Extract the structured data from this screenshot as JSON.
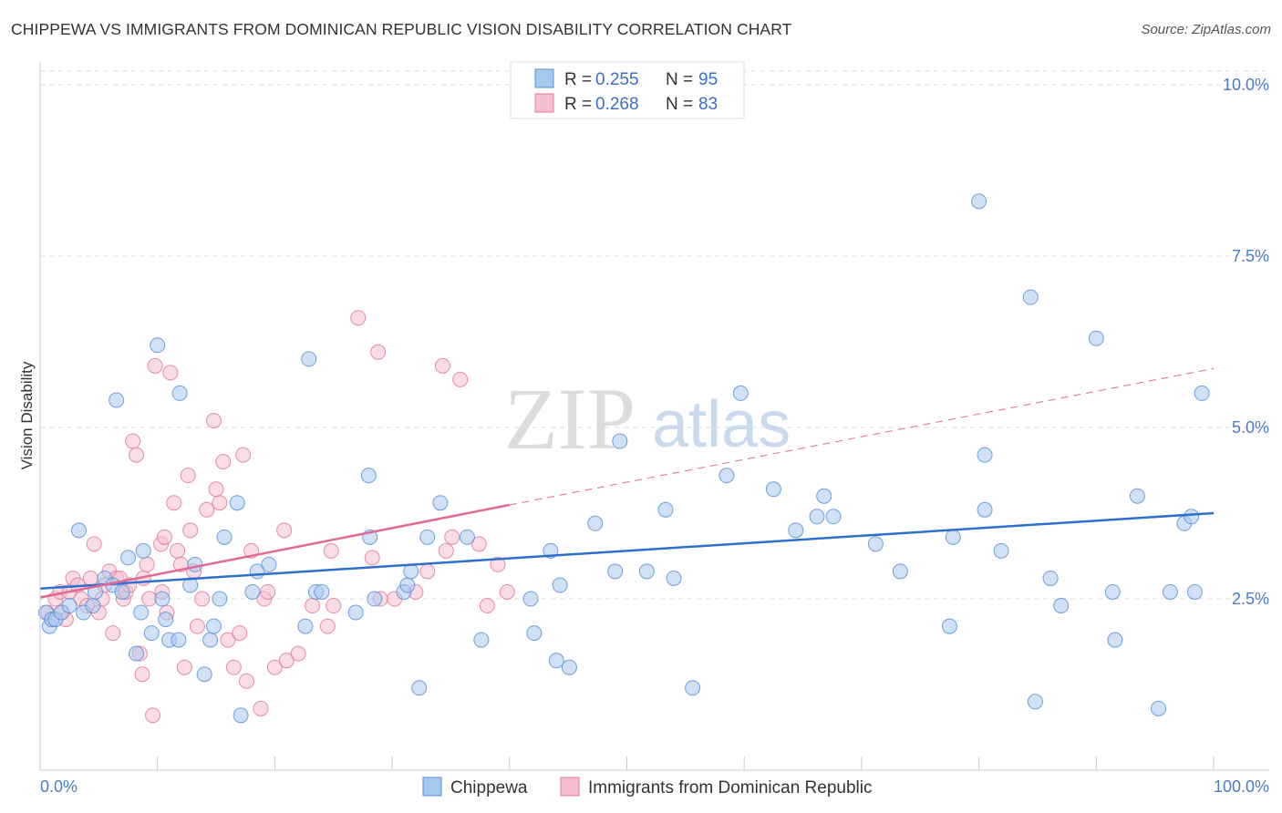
{
  "header": {
    "title": "CHIPPEWA VS IMMIGRANTS FROM DOMINICAN REPUBLIC VISION DISABILITY CORRELATION CHART",
    "source": "Source: ZipAtlas.com"
  },
  "watermark": {
    "zip": "ZIP",
    "atlas": "atlas"
  },
  "legend": {
    "items": [
      {
        "r_label": "R =",
        "r_value": "0.255",
        "n_label": "N =",
        "n_value": "95"
      },
      {
        "r_label": "R =",
        "r_value": "0.268",
        "n_label": "N =",
        "n_value": "83"
      }
    ]
  },
  "bottom_legend": [
    "Chippewa",
    "Immigrants from Dominican Republic"
  ],
  "colors": {
    "blue_fill": "#a9c8ef",
    "blue_stroke": "#5b8fd6",
    "blue_line": "#2e6fcb",
    "pink_fill": "#f6bfd0",
    "pink_stroke": "#e07a9b",
    "pink_line": "#e0699a",
    "tick_label": "#4a7cc7",
    "grid": "#dddddd"
  },
  "chart_data": {
    "type": "scatter",
    "title": "CHIPPEWA VS IMMIGRANTS FROM DOMINICAN REPUBLIC VISION DISABILITY CORRELATION CHART",
    "xlabel": "",
    "ylabel": "Vision Disability",
    "xlim": [
      0,
      100
    ],
    "ylim": [
      0,
      10.2
    ],
    "x_tick_labels": [
      "0.0%",
      "100.0%"
    ],
    "y_ticks": [
      2.5,
      5.0,
      7.5,
      10.0
    ],
    "y_tick_labels": [
      "2.5%",
      "5.0%",
      "7.5%",
      "10.0%"
    ],
    "grid": "horizontal dashed",
    "legend_position": "top-center",
    "series": [
      {
        "name": "Chippewa",
        "r": 0.255,
        "n": 95,
        "trend": {
          "x": [
            0,
            100
          ],
          "y": [
            2.65,
            3.75
          ],
          "style": "solid"
        },
        "points": [
          [
            0.5,
            2.3
          ],
          [
            0.8,
            2.1
          ],
          [
            1.0,
            2.2
          ],
          [
            1.3,
            2.2
          ],
          [
            1.8,
            2.3
          ],
          [
            2.5,
            2.4
          ],
          [
            3.3,
            3.5
          ],
          [
            3.7,
            2.3
          ],
          [
            4.5,
            2.4
          ],
          [
            4.7,
            2.6
          ],
          [
            5.5,
            2.8
          ],
          [
            6.2,
            2.7
          ],
          [
            6.5,
            5.4
          ],
          [
            7.0,
            2.6
          ],
          [
            7.5,
            3.1
          ],
          [
            8.2,
            1.7
          ],
          [
            8.6,
            2.3
          ],
          [
            8.8,
            3.2
          ],
          [
            9.5,
            2.0
          ],
          [
            10.0,
            6.2
          ],
          [
            10.4,
            2.5
          ],
          [
            10.7,
            2.2
          ],
          [
            11.0,
            1.9
          ],
          [
            11.8,
            1.9
          ],
          [
            11.9,
            5.5
          ],
          [
            12.8,
            2.7
          ],
          [
            13.2,
            3.0
          ],
          [
            14.0,
            1.4
          ],
          [
            14.5,
            1.9
          ],
          [
            14.8,
            2.1
          ],
          [
            15.3,
            2.5
          ],
          [
            15.7,
            3.4
          ],
          [
            16.8,
            3.9
          ],
          [
            17.1,
            0.8
          ],
          [
            18.1,
            2.6
          ],
          [
            18.5,
            2.9
          ],
          [
            19.5,
            3.0
          ],
          [
            22.6,
            2.1
          ],
          [
            22.9,
            6.0
          ],
          [
            23.5,
            2.6
          ],
          [
            24.0,
            2.6
          ],
          [
            26.9,
            2.3
          ],
          [
            28.0,
            4.3
          ],
          [
            28.1,
            3.4
          ],
          [
            28.5,
            2.5
          ],
          [
            31.0,
            2.6
          ],
          [
            31.3,
            2.7
          ],
          [
            31.6,
            2.9
          ],
          [
            32.3,
            1.2
          ],
          [
            33.0,
            3.4
          ],
          [
            34.1,
            3.9
          ],
          [
            36.4,
            3.4
          ],
          [
            37.6,
            1.9
          ],
          [
            41.8,
            2.5
          ],
          [
            42.1,
            2.0
          ],
          [
            43.5,
            3.2
          ],
          [
            44.0,
            1.6
          ],
          [
            44.3,
            2.7
          ],
          [
            45.1,
            1.5
          ],
          [
            47.3,
            3.6
          ],
          [
            49.0,
            2.9
          ],
          [
            49.4,
            4.8
          ],
          [
            51.7,
            2.9
          ],
          [
            53.3,
            3.8
          ],
          [
            54.0,
            2.8
          ],
          [
            55.6,
            1.2
          ],
          [
            58.5,
            4.3
          ],
          [
            59.7,
            5.5
          ],
          [
            62.5,
            4.1
          ],
          [
            64.4,
            3.5
          ],
          [
            66.2,
            3.7
          ],
          [
            66.8,
            4.0
          ],
          [
            67.6,
            3.7
          ],
          [
            71.2,
            3.3
          ],
          [
            73.3,
            2.9
          ],
          [
            77.5,
            2.1
          ],
          [
            77.8,
            3.4
          ],
          [
            80.0,
            8.3
          ],
          [
            80.5,
            4.6
          ],
          [
            80.5,
            3.8
          ],
          [
            81.9,
            3.2
          ],
          [
            84.4,
            6.9
          ],
          [
            84.8,
            1.0
          ],
          [
            86.1,
            2.8
          ],
          [
            87.0,
            2.4
          ],
          [
            90.0,
            6.3
          ],
          [
            91.4,
            2.6
          ],
          [
            91.6,
            1.9
          ],
          [
            93.5,
            4.0
          ],
          [
            95.3,
            0.9
          ],
          [
            96.3,
            2.6
          ],
          [
            97.5,
            3.6
          ],
          [
            98.1,
            3.7
          ],
          [
            98.4,
            2.6
          ],
          [
            99.0,
            5.5
          ]
        ]
      },
      {
        "name": "Immigrants from Dominican Republic",
        "r": 0.268,
        "n": 83,
        "trend": {
          "x": [
            0,
            40
          ],
          "y": [
            2.52,
            3.87
          ],
          "style": "solid"
        },
        "trend_extension": {
          "x": [
            40,
            100
          ],
          "y": [
            3.87,
            5.86
          ],
          "style": "dashed"
        },
        "points": [
          [
            0.6,
            2.3
          ],
          [
            1.0,
            2.2
          ],
          [
            1.3,
            2.5
          ],
          [
            1.7,
            2.6
          ],
          [
            1.9,
            2.3
          ],
          [
            2.2,
            2.2
          ],
          [
            2.5,
            2.6
          ],
          [
            2.8,
            2.8
          ],
          [
            3.2,
            2.7
          ],
          [
            3.5,
            2.5
          ],
          [
            4.0,
            2.4
          ],
          [
            4.3,
            2.8
          ],
          [
            4.6,
            3.3
          ],
          [
            5.0,
            2.3
          ],
          [
            5.3,
            2.5
          ],
          [
            5.5,
            2.7
          ],
          [
            5.9,
            2.9
          ],
          [
            6.2,
            2.0
          ],
          [
            6.5,
            2.8
          ],
          [
            6.8,
            2.8
          ],
          [
            7.1,
            2.5
          ],
          [
            7.3,
            2.6
          ],
          [
            7.6,
            2.7
          ],
          [
            7.9,
            4.8
          ],
          [
            8.2,
            4.6
          ],
          [
            8.5,
            1.7
          ],
          [
            8.7,
            1.4
          ],
          [
            8.8,
            2.8
          ],
          [
            9.1,
            3.0
          ],
          [
            9.3,
            2.5
          ],
          [
            9.6,
            0.8
          ],
          [
            9.8,
            5.9
          ],
          [
            10.3,
            3.3
          ],
          [
            10.4,
            2.6
          ],
          [
            10.6,
            3.4
          ],
          [
            10.8,
            2.3
          ],
          [
            11.1,
            5.8
          ],
          [
            11.4,
            3.9
          ],
          [
            11.7,
            3.2
          ],
          [
            12.0,
            3.0
          ],
          [
            12.3,
            1.5
          ],
          [
            12.6,
            4.3
          ],
          [
            12.8,
            3.5
          ],
          [
            13.1,
            2.9
          ],
          [
            13.4,
            2.1
          ],
          [
            13.8,
            2.5
          ],
          [
            14.2,
            3.8
          ],
          [
            14.8,
            5.1
          ],
          [
            15.0,
            4.1
          ],
          [
            15.3,
            3.9
          ],
          [
            15.6,
            4.5
          ],
          [
            16.0,
            1.9
          ],
          [
            16.5,
            1.5
          ],
          [
            17.0,
            2.0
          ],
          [
            17.3,
            4.6
          ],
          [
            17.6,
            1.3
          ],
          [
            18.0,
            3.2
          ],
          [
            18.8,
            0.9
          ],
          [
            19.1,
            2.5
          ],
          [
            19.4,
            2.6
          ],
          [
            20.0,
            1.5
          ],
          [
            20.8,
            3.5
          ],
          [
            21.0,
            1.6
          ],
          [
            22.0,
            1.7
          ],
          [
            23.2,
            2.4
          ],
          [
            24.5,
            2.1
          ],
          [
            24.8,
            3.2
          ],
          [
            25.0,
            2.4
          ],
          [
            27.1,
            6.6
          ],
          [
            28.3,
            3.1
          ],
          [
            28.8,
            6.1
          ],
          [
            29.0,
            2.5
          ],
          [
            30.2,
            2.5
          ],
          [
            32.0,
            2.6
          ],
          [
            33.0,
            2.9
          ],
          [
            34.3,
            5.9
          ],
          [
            34.6,
            3.2
          ],
          [
            35.1,
            3.4
          ],
          [
            35.8,
            5.7
          ],
          [
            37.4,
            3.3
          ],
          [
            38.1,
            2.4
          ],
          [
            39.0,
            3.0
          ],
          [
            39.8,
            2.6
          ]
        ]
      }
    ]
  }
}
